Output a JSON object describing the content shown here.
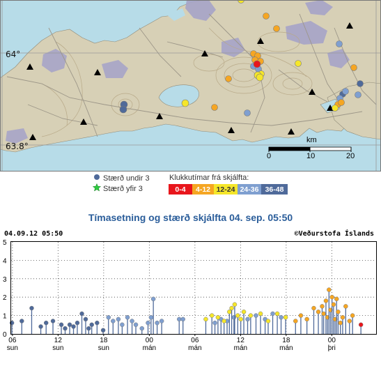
{
  "map": {
    "lat_labels": [
      "64°",
      "63.8°"
    ],
    "scale_label": "km",
    "scale_ticks": [
      "0",
      "10",
      "20"
    ],
    "colors": {
      "land": "#d7d0b6",
      "sea": "#b7dce8",
      "lava": "#a7a4c8",
      "grid": "#999999"
    }
  },
  "legend": {
    "under3_label": "Stærð undir 3",
    "over3_label": "Stærð yfir 3",
    "hours_title": "Klukkutímar frá skjálfta:",
    "bins": [
      {
        "label": "0-4",
        "color": "#e8161c",
        "text_color": "#ffffff"
      },
      {
        "label": "4-12",
        "color": "#f5a623",
        "text_color": "#ffffff"
      },
      {
        "label": "12-24",
        "color": "#f5e62a",
        "text_color": "#333333"
      },
      {
        "label": "24-36",
        "color": "#7f9fd0",
        "text_color": "#ffffff"
      },
      {
        "label": "36-48",
        "color": "#4f6a9a",
        "text_color": "#ffffff"
      }
    ]
  },
  "chart_title": "Tímasetning og stærð skjálfta   04. sep. 05:50",
  "chart": {
    "timestamp": "04.09.12 05:50",
    "credit": "©Veðurstofa Íslands"
  },
  "chart_data": {
    "type": "scatter",
    "title": "Tímasetning og stærð skjálfta   04. sep. 05:50",
    "x_unit": "hours since chart start (02.09.12 05:50)",
    "xlim": [
      0,
      48
    ],
    "ylim": [
      0,
      5
    ],
    "yticks": [
      0,
      1,
      2,
      3,
      4,
      5
    ],
    "xticks": [
      {
        "hour": 0.17,
        "time": "06",
        "day": "sun"
      },
      {
        "hour": 6.17,
        "time": "12",
        "day": "sun"
      },
      {
        "hour": 12.17,
        "time": "18",
        "day": "sun"
      },
      {
        "hour": 18.17,
        "time": "00",
        "day": "mán"
      },
      {
        "hour": 24.17,
        "time": "06",
        "day": "mán"
      },
      {
        "hour": 30.17,
        "time": "12",
        "day": "mán"
      },
      {
        "hour": 36.17,
        "time": "18",
        "day": "mán"
      },
      {
        "hour": 42.17,
        "time": "00",
        "day": "þri"
      }
    ],
    "series": [
      {
        "name": "36-48",
        "color": "#4f6a9a",
        "points": [
          [
            0.1,
            0.6
          ],
          [
            1.4,
            0.7
          ],
          [
            2.7,
            1.4
          ],
          [
            3.9,
            0.4
          ],
          [
            4.6,
            0.6
          ],
          [
            5.5,
            0.7
          ],
          [
            6.6,
            0.5
          ],
          [
            7.1,
            0.3
          ],
          [
            7.7,
            0.5
          ],
          [
            8.2,
            0.4
          ],
          [
            8.7,
            0.6
          ],
          [
            9.3,
            1.1
          ],
          [
            9.8,
            0.8
          ],
          [
            10.2,
            0.3
          ],
          [
            10.6,
            0.5
          ],
          [
            11.3,
            0.6
          ],
          [
            12.1,
            0.2
          ]
        ]
      },
      {
        "name": "24-36",
        "color": "#7f9fd0",
        "points": [
          [
            12.8,
            0.9
          ],
          [
            13.4,
            0.7
          ],
          [
            14.1,
            0.8
          ],
          [
            14.6,
            0.5
          ],
          [
            15.3,
            0.9
          ],
          [
            15.9,
            0.7
          ],
          [
            16.4,
            0.5
          ],
          [
            17.2,
            0.3
          ],
          [
            18.0,
            0.6
          ],
          [
            18.4,
            0.9
          ],
          [
            18.7,
            1.9
          ],
          [
            19.2,
            0.6
          ],
          [
            19.8,
            0.7
          ],
          [
            22.1,
            0.8
          ],
          [
            22.6,
            0.8
          ],
          [
            26.8,
            0.6
          ],
          [
            27.6,
            0.8
          ],
          [
            28.4,
            0.7
          ],
          [
            29.3,
            0.9
          ],
          [
            31.1,
            0.8
          ],
          [
            32.2,
            1.0
          ],
          [
            33.4,
            0.8
          ],
          [
            34.4,
            1.1
          ],
          [
            35.5,
            0.9
          ]
        ]
      },
      {
        "name": "12-24",
        "color": "#f5e62a",
        "points": [
          [
            25.6,
            0.8
          ],
          [
            26.4,
            1.0
          ],
          [
            27.2,
            0.9
          ],
          [
            28.0,
            0.7
          ],
          [
            28.7,
            1.2
          ],
          [
            29.0,
            1.4
          ],
          [
            29.4,
            1.6
          ],
          [
            29.8,
            1.0
          ],
          [
            30.2,
            0.8
          ],
          [
            30.6,
            1.2
          ],
          [
            31.5,
            1.0
          ],
          [
            32.8,
            1.1
          ],
          [
            33.8,
            0.7
          ],
          [
            35.0,
            1.1
          ],
          [
            36.1,
            0.9
          ]
        ]
      },
      {
        "name": "4-12",
        "color": "#f5a623",
        "points": [
          [
            37.4,
            0.7
          ],
          [
            38.1,
            1.0
          ],
          [
            38.9,
            0.8
          ],
          [
            39.8,
            1.4
          ],
          [
            40.4,
            1.2
          ],
          [
            40.9,
            1.5
          ],
          [
            41.1,
            1.1
          ],
          [
            41.4,
            1.8
          ],
          [
            41.6,
            0.9
          ],
          [
            41.8,
            2.4
          ],
          [
            42.0,
            1.3
          ],
          [
            42.2,
            2.0
          ],
          [
            42.4,
            1.6
          ],
          [
            42.6,
            0.8
          ],
          [
            42.8,
            1.9
          ],
          [
            43.0,
            1.2
          ],
          [
            43.3,
            0.6
          ],
          [
            43.6,
            0.9
          ],
          [
            44.0,
            1.5
          ],
          [
            44.5,
            0.7
          ],
          [
            44.9,
            1.0
          ]
        ]
      },
      {
        "name": "0-4",
        "color": "#e8161c",
        "points": [
          [
            46.0,
            0.5
          ]
        ]
      }
    ]
  }
}
